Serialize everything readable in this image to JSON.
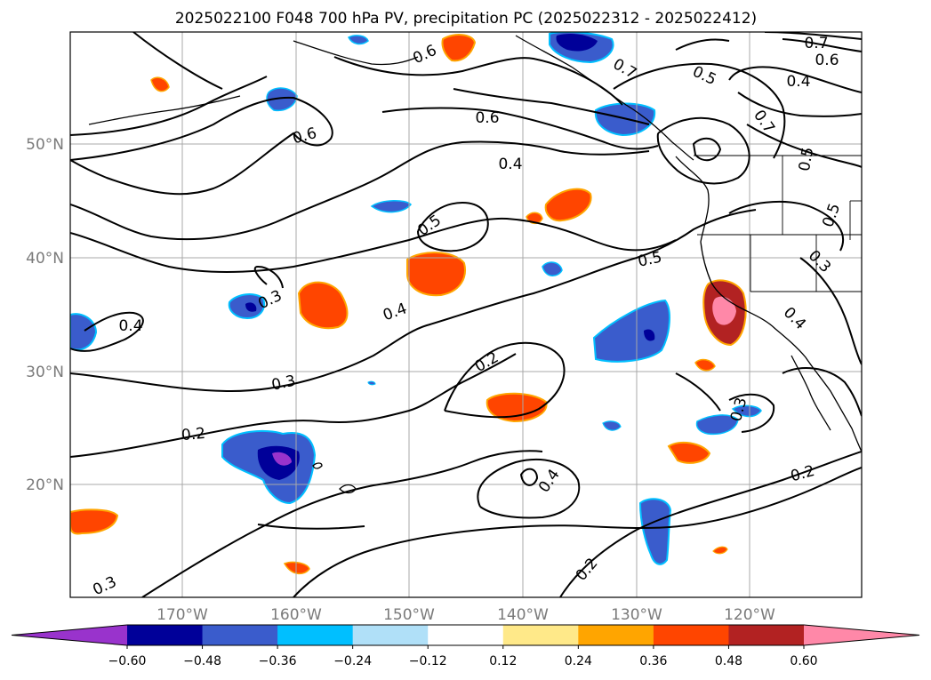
{
  "title": "2025022100 F048 700 hPa PV, precipitation PC (2025022312 - 2025022412)",
  "lat_labels": [
    "50°N",
    "40°N",
    "30°N",
    "20°N"
  ],
  "lon_labels": [
    "170°W",
    "160°W",
    "150°W",
    "140°W",
    "130°W",
    "120°W"
  ],
  "contour_labels": [
    "0.7",
    "0.6",
    "0.6",
    "0.7",
    "0.5",
    "0.6",
    "0.4",
    "0.6",
    "0.7",
    "0.4",
    "0.5",
    "0.5",
    "0.3",
    "0.4",
    "0.3",
    "0.5",
    "0.3",
    "0.4",
    "0.2",
    "0.4",
    "0.2",
    "0.3",
    "0.4",
    "0.2",
    "0.3",
    "0.2",
    "0.5"
  ],
  "colorbar": {
    "ticks": [
      "−0.60",
      "−0.48",
      "−0.36",
      "−0.24",
      "−0.12",
      "0.12",
      "0.24",
      "0.36",
      "0.48",
      "0.60"
    ],
    "colors": [
      "#9933cc",
      "#000099",
      "#3a5ccc",
      "#00bfff",
      "#b0e0f8",
      "#ffffff",
      "#ffe989",
      "#ffa500",
      "#ff4500",
      "#b22222",
      "#ff88a8"
    ],
    "extend": "both"
  }
}
